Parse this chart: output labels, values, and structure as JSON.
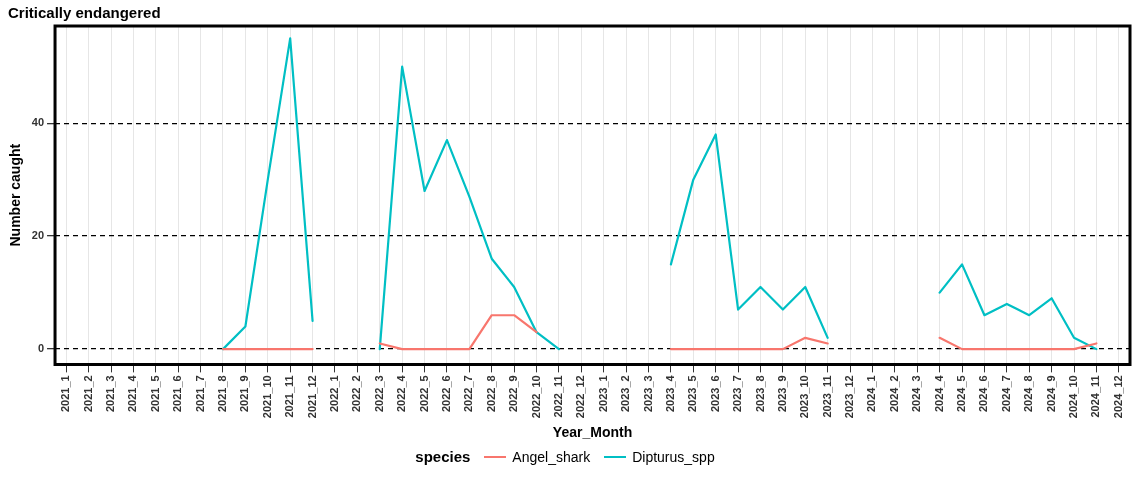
{
  "chart_data": {
    "type": "line",
    "title": "Critically endangered",
    "xlabel": "Year_Month",
    "ylabel": "Number caught",
    "legend_title": "species",
    "categories": [
      "2021_1",
      "2021_2",
      "2021_3",
      "2021_4",
      "2021_5",
      "2021_6",
      "2021_7",
      "2021_8",
      "2021_9",
      "2021_10",
      "2021_11",
      "2021_12",
      "2022_1",
      "2022_2",
      "2022_3",
      "2022_4",
      "2022_5",
      "2022_6",
      "2022_7",
      "2022_8",
      "2022_9",
      "2022_10",
      "2022_11",
      "2022_12",
      "2023_1",
      "2023_2",
      "2023_3",
      "2023_4",
      "2023_5",
      "2023_6",
      "2023_7",
      "2023_8",
      "2023_9",
      "2023_10",
      "2023_11",
      "2023_12",
      "2024_1",
      "2024_2",
      "2024_3",
      "2024_4",
      "2024_5",
      "2024_6",
      "2024_7",
      "2024_8",
      "2024_9",
      "2024_10",
      "2024_11",
      "2024_12"
    ],
    "series": [
      {
        "name": "Angel_shark",
        "color": "#f8766d",
        "values": [
          null,
          null,
          null,
          null,
          null,
          null,
          null,
          0,
          0,
          0,
          0,
          0,
          null,
          null,
          1,
          0,
          0,
          0,
          0,
          6,
          6,
          3,
          null,
          null,
          null,
          null,
          null,
          0,
          0,
          0,
          0,
          0,
          0,
          2,
          1,
          null,
          null,
          null,
          null,
          2,
          0,
          0,
          0,
          0,
          0,
          0,
          1,
          null
        ]
      },
      {
        "name": "Dipturus_spp",
        "color": "#00bfc4",
        "values": [
          null,
          null,
          null,
          null,
          null,
          null,
          null,
          0,
          4,
          30,
          55,
          5,
          null,
          null,
          0,
          50,
          28,
          37,
          27,
          16,
          11,
          3,
          0,
          null,
          null,
          null,
          null,
          15,
          30,
          38,
          7,
          11,
          7,
          11,
          2,
          null,
          null,
          null,
          null,
          10,
          15,
          6,
          8,
          6,
          9,
          2,
          0,
          null
        ]
      }
    ],
    "ylim": [
      -2.7,
      57.2
    ],
    "yticks": [
      0,
      20,
      40
    ],
    "grid": true,
    "legend": "bottom",
    "marker": "none",
    "line_style": "solid"
  }
}
